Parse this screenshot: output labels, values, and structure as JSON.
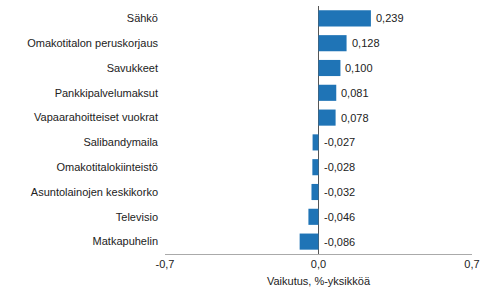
{
  "chart_data": {
    "type": "bar",
    "orientation": "horizontal",
    "categories": [
      "Sähkö",
      "Omakotitalon peruskorjaus",
      "Savukkeet",
      "Pankkipalvelumaksut",
      "Vapaarahoitteiset vuokrat",
      "Salibandymaila",
      "Omakotitalokiinteistö",
      "Asuntolainojen keskikorko",
      "Televisio",
      "Matkapuhelin"
    ],
    "values": [
      0.239,
      0.128,
      0.1,
      0.081,
      0.078,
      -0.027,
      -0.028,
      -0.032,
      -0.046,
      -0.086
    ],
    "value_labels": [
      "0,239",
      "0,128",
      "0,100",
      "0,081",
      "0,078",
      "-0,027",
      "-0,028",
      "-0,032",
      "-0,046",
      "-0,086"
    ],
    "data_labels": true,
    "color": "#1f74b6",
    "xlabel": "Vaikutus, %-yksikköä",
    "xlim": [
      -0.7,
      0.7
    ],
    "xticks": [
      {
        "value": -0.7,
        "label": "-0,7"
      },
      {
        "value": 0,
        "label": "0,0"
      },
      {
        "value": 0.7,
        "label": "0,7"
      }
    ],
    "grid": true
  }
}
